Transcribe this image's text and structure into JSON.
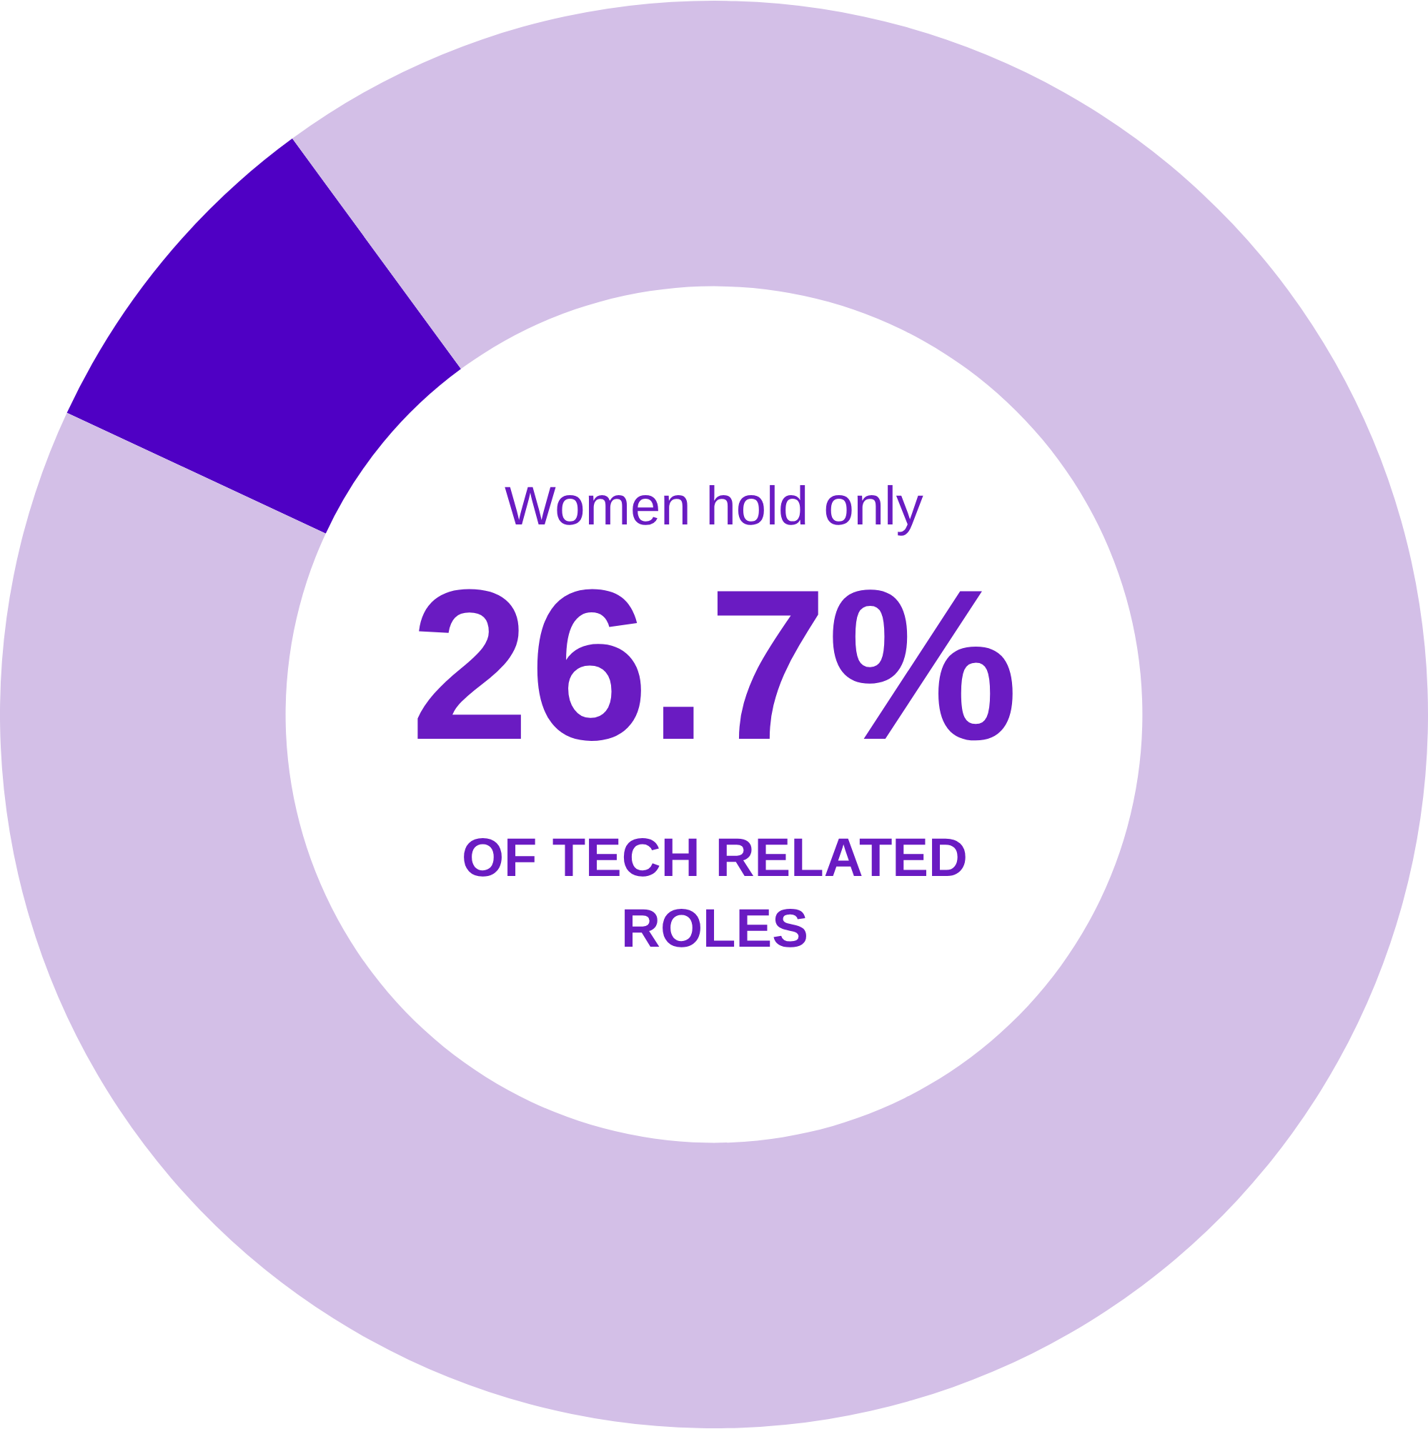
{
  "chart_data": {
    "type": "donut",
    "categories": [
      null,
      null
    ],
    "values": [
      8,
      92
    ],
    "colors": [
      "#4f00c4",
      "#d3bfe7"
    ],
    "annotations": [
      "Women hold only",
      "26.7%",
      "OF TECH RELATED ROLES"
    ],
    "legend": false
  }
}
